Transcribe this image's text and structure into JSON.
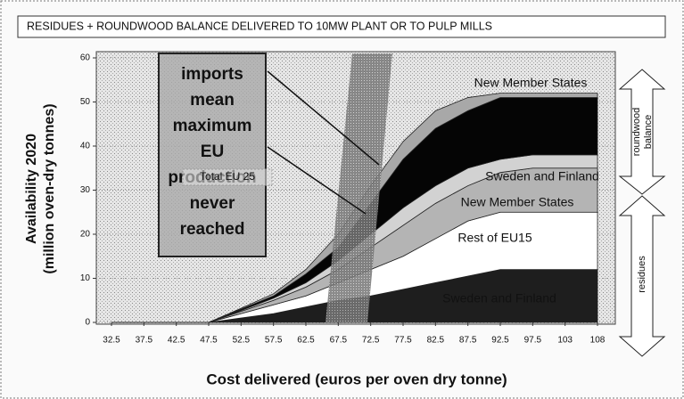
{
  "chart_data": {
    "type": "stacked_area",
    "title": "RESIDUES + ROUNDWOOD BALANCE DELIVERED TO 10MW PLANT OR TO PULP MILLS",
    "x_label": "Cost delivered (euros per oven dry tonne)",
    "y_label_lines": [
      "Availability 2020",
      "(million oven-dry tonnes)"
    ],
    "categories": [
      "32.5",
      "37.5",
      "42.5",
      "47.5",
      "52.5",
      "57.5",
      "62.5",
      "67.5",
      "72.5",
      "77.5",
      "82.5",
      "87.5",
      "92.5",
      "97.5",
      "103",
      "108"
    ],
    "ylim": [
      0,
      60
    ],
    "yticks": [
      0,
      10,
      20,
      30,
      40,
      50,
      60
    ],
    "series": [
      {
        "name": "Sweden and Finland",
        "color": "#1e1e1e",
        "values": [
          0,
          0,
          0,
          0,
          1,
          2,
          3.5,
          5,
          6,
          7.5,
          9,
          10.5,
          12,
          12,
          12,
          12
        ]
      },
      {
        "name": "Rest of EU15",
        "color": "#ffffff",
        "values": [
          0,
          0,
          0,
          0,
          1,
          2,
          2.5,
          4,
          6,
          7.5,
          10,
          12.5,
          13,
          13,
          13,
          13
        ]
      },
      {
        "name": "New Member States",
        "color": "#b4b4b4",
        "values": [
          0,
          0,
          0,
          0,
          0.5,
          1,
          2,
          3,
          5,
          7,
          8,
          8,
          9,
          10,
          10,
          10
        ]
      },
      {
        "name": "Sweden and Finland",
        "color": "#d2d2d2",
        "values": [
          0,
          0,
          0,
          0,
          0.2,
          0.5,
          1,
          2,
          3,
          4,
          4,
          4,
          3,
          3,
          3,
          3
        ]
      },
      {
        "color": "#050505",
        "values": [
          0,
          0,
          0,
          0,
          0.3,
          0.5,
          2,
          3,
          7,
          11,
          13,
          13,
          14,
          13,
          13,
          13
        ]
      },
      {
        "name": "New Member States",
        "color": "#a8a8a8",
        "values": [
          0,
          0,
          0,
          0,
          0.2,
          0.5,
          1,
          3,
          4,
          4,
          4,
          3,
          1,
          1,
          1,
          1
        ]
      }
    ],
    "annotation_lines": [
      "imports",
      "mean",
      "maximum",
      "EU",
      "production",
      "never",
      "reached"
    ],
    "total_label": "Total EU 25",
    "roundwood_label_lines": [
      "roundwood",
      "balance"
    ],
    "residues_label": "residues"
  }
}
